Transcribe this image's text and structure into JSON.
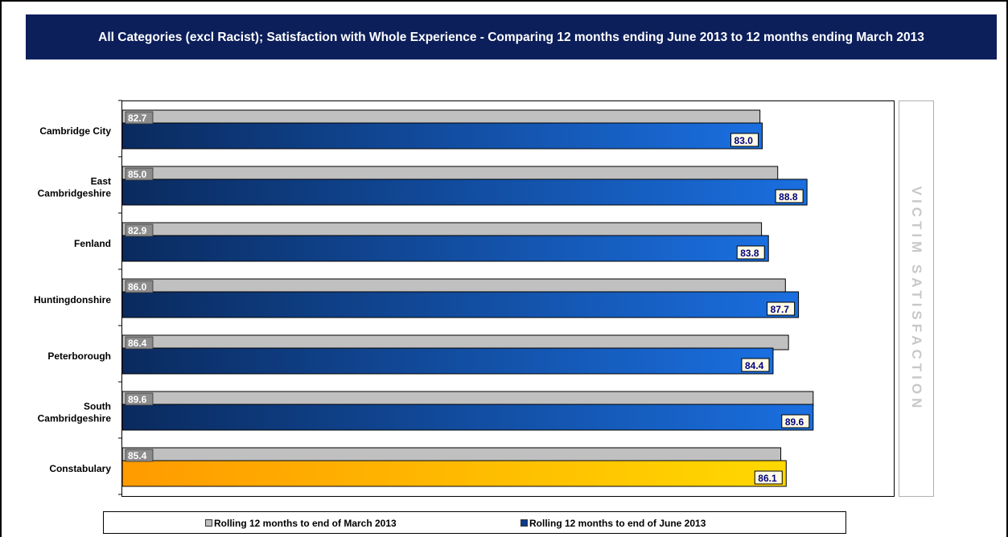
{
  "title": "All Categories (excl Racist); Satisfaction with Whole Experience - Comparing 12 months ending June 2013 to 12 months ending March 2013",
  "side_label": "VICTIM SATISFACTION",
  "colors": {
    "title_bg": "#0c1f5b",
    "march_bar": "#c0c0c0",
    "june_bar_dark": "#0a2a5e",
    "june_bar_light": "#1a6fe0",
    "constabulary_dark": "#ff9b00",
    "constabulary_light": "#ffd800"
  },
  "legend": {
    "march": "Rolling 12 months to end of March 2013",
    "june": "Rolling 12 months to end of June 2013"
  },
  "chart_data": {
    "type": "bar",
    "orientation": "horizontal",
    "categories": [
      "Cambridge City",
      "East Cambridgeshire",
      "Fenland",
      "Huntingdonshire",
      "Peterborough",
      "South Cambridgeshire",
      "Constabulary"
    ],
    "category_lines": [
      [
        "Cambridge City"
      ],
      [
        "East",
        "Cambridgeshire"
      ],
      [
        "Fenland"
      ],
      [
        "Huntingdonshire"
      ],
      [
        "Peterborough"
      ],
      [
        "South",
        "Cambridgeshire"
      ],
      [
        "Constabulary"
      ]
    ],
    "series": [
      {
        "name": "Rolling 12 months to end of March 2013",
        "values": [
          82.7,
          85.0,
          82.9,
          86.0,
          86.4,
          89.6,
          85.4
        ]
      },
      {
        "name": "Rolling 12 months to end of June 2013",
        "values": [
          83.0,
          88.8,
          83.8,
          87.7,
          84.4,
          89.6,
          86.1
        ]
      }
    ],
    "xlim": [
      0,
      100
    ],
    "legend_position": "bottom",
    "grid": false
  }
}
